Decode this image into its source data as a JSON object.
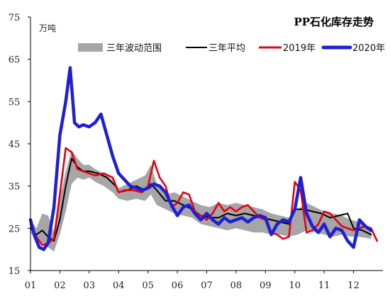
{
  "chart_data": {
    "type": "line",
    "title": "PP石化库存走势",
    "unit": "万吨",
    "xlabel": "",
    "ylabel": "",
    "ylim": [
      15,
      75
    ],
    "yticks": [
      15,
      25,
      35,
      45,
      55,
      65,
      75
    ],
    "xlim": [
      1,
      13
    ],
    "month_labels": [
      "01",
      "02",
      "03",
      "04",
      "05",
      "06",
      "07",
      "08",
      "09",
      "10",
      "11",
      "12"
    ],
    "grid": false,
    "legend_position": "top",
    "colors": {
      "band": "#a6a6a6",
      "avg": "#000000",
      "y2019": "#e60012",
      "y2020": "#1f1fd6"
    },
    "legend": {
      "band": "三年波动范围",
      "avg": "三年平均",
      "y2019": "2019年",
      "y2020": "2020年"
    },
    "band": {
      "name": "三年波动范围",
      "x": [
        1.0,
        1.2,
        1.4,
        1.6,
        1.8,
        2.0,
        2.2,
        2.4,
        2.6,
        2.8,
        3.0,
        3.2,
        3.5,
        3.8,
        4.0,
        4.3,
        4.6,
        4.9,
        5.1,
        5.3,
        5.6,
        5.9,
        6.2,
        6.5,
        6.8,
        7.1,
        7.4,
        7.7,
        8.0,
        8.3,
        8.6,
        8.9,
        9.2,
        9.5,
        9.8,
        10.1,
        10.4,
        10.7,
        11.0,
        11.3,
        11.6,
        11.9,
        12.2,
        12.6
      ],
      "high": [
        27.0,
        25.0,
        28.5,
        28.0,
        24.0,
        32.0,
        38.5,
        43.5,
        41.5,
        40.0,
        40.0,
        39.0,
        38.0,
        36.5,
        34.5,
        35.5,
        36.5,
        37.5,
        40.0,
        35.5,
        33.0,
        33.5,
        32.5,
        31.5,
        30.5,
        30.0,
        31.0,
        30.5,
        31.0,
        30.5,
        30.0,
        29.5,
        28.5,
        28.0,
        27.5,
        29.5,
        31.0,
        30.0,
        29.0,
        28.5,
        28.0,
        27.0,
        26.5,
        25.0
      ],
      "low": [
        24.0,
        22.0,
        21.5,
        20.5,
        19.5,
        23.5,
        29.0,
        35.5,
        37.0,
        36.5,
        37.0,
        36.0,
        35.0,
        33.5,
        32.0,
        31.5,
        32.0,
        31.5,
        33.0,
        30.5,
        29.5,
        28.5,
        28.0,
        27.5,
        26.0,
        25.5,
        25.0,
        24.5,
        25.0,
        24.5,
        24.0,
        24.0,
        23.5,
        23.5,
        23.0,
        23.5,
        24.5,
        24.0,
        23.5,
        23.0,
        23.5,
        23.0,
        23.0,
        22.5
      ]
    },
    "series": [
      {
        "name": "三年平均",
        "key": "avg",
        "x": [
          1.0,
          1.2,
          1.4,
          1.6,
          1.8,
          2.0,
          2.2,
          2.4,
          2.6,
          2.8,
          3.0,
          3.3,
          3.6,
          3.9,
          4.0,
          4.3,
          4.6,
          4.9,
          5.1,
          5.3,
          5.6,
          5.9,
          6.2,
          6.5,
          6.8,
          7.1,
          7.4,
          7.7,
          8.0,
          8.3,
          8.6,
          8.9,
          9.2,
          9.5,
          9.8,
          10.0,
          10.3,
          10.6,
          10.9,
          11.2,
          11.5,
          11.8,
          12.0,
          12.3,
          12.6
        ],
        "values": [
          25.0,
          23.5,
          24.5,
          23.0,
          22.0,
          27.0,
          35.0,
          41.5,
          39.5,
          38.5,
          38.5,
          38.0,
          37.0,
          35.0,
          33.5,
          34.0,
          35.0,
          34.0,
          35.5,
          34.0,
          31.5,
          31.5,
          30.5,
          29.5,
          28.0,
          27.5,
          27.5,
          28.5,
          28.0,
          28.5,
          28.0,
          27.5,
          27.0,
          26.5,
          26.0,
          29.5,
          29.5,
          29.0,
          28.5,
          27.5,
          28.0,
          28.5,
          25.0,
          24.5,
          23.5
        ]
      },
      {
        "name": "2019年",
        "key": "y2019",
        "x": [
          1.0,
          1.2,
          1.4,
          1.6,
          1.8,
          2.0,
          2.2,
          2.4,
          2.6,
          2.8,
          3.0,
          3.2,
          3.5,
          3.8,
          4.0,
          4.2,
          4.5,
          4.8,
          5.0,
          5.2,
          5.4,
          5.6,
          5.8,
          6.0,
          6.2,
          6.4,
          6.6,
          6.8,
          7.0,
          7.2,
          7.4,
          7.6,
          7.8,
          8.0,
          8.2,
          8.4,
          8.6,
          8.8,
          9.0,
          9.2,
          9.4,
          9.6,
          9.8,
          10.0,
          10.2,
          10.4,
          10.6,
          10.8,
          11.0,
          11.2,
          11.4,
          11.6,
          11.8,
          12.0,
          12.2,
          12.4,
          12.6,
          12.8
        ],
        "values": [
          26.0,
          23.0,
          21.0,
          21.5,
          22.5,
          33.0,
          44.0,
          43.0,
          39.0,
          38.5,
          38.0,
          37.5,
          38.0,
          37.0,
          33.5,
          34.0,
          34.0,
          33.5,
          35.0,
          41.0,
          37.0,
          35.0,
          30.0,
          31.0,
          33.5,
          33.0,
          29.0,
          28.0,
          27.0,
          28.5,
          31.0,
          29.0,
          30.0,
          29.0,
          30.0,
          30.5,
          29.0,
          27.5,
          27.0,
          24.0,
          23.5,
          22.5,
          23.0,
          36.0,
          34.0,
          24.0,
          24.5,
          26.0,
          29.0,
          28.5,
          27.0,
          25.5,
          25.0,
          24.5,
          25.0,
          25.5,
          25.0,
          22.0
        ]
      },
      {
        "name": "2020年",
        "key": "y2020",
        "x": [
          1.0,
          1.15,
          1.3,
          1.45,
          1.6,
          1.8,
          2.0,
          2.2,
          2.35,
          2.5,
          2.65,
          2.8,
          3.0,
          3.2,
          3.4,
          3.6,
          3.8,
          4.0,
          4.2,
          4.4,
          4.6,
          4.8,
          5.0,
          5.2,
          5.4,
          5.6,
          5.8,
          6.0,
          6.2,
          6.4,
          6.6,
          6.8,
          7.0,
          7.2,
          7.4,
          7.6,
          7.8,
          8.0,
          8.2,
          8.4,
          8.6,
          8.8,
          9.0,
          9.2,
          9.4,
          9.6,
          9.8,
          10.0,
          10.2,
          10.4,
          10.6,
          10.8,
          11.0,
          11.2,
          11.4,
          11.6,
          11.8,
          12.0,
          12.2,
          12.4,
          12.6
        ],
        "values": [
          27.0,
          23.0,
          20.5,
          20.0,
          21.5,
          30.0,
          47.0,
          55.0,
          63.0,
          50.0,
          49.0,
          49.5,
          49.0,
          50.0,
          52.0,
          47.0,
          42.0,
          38.0,
          36.5,
          35.0,
          34.5,
          34.0,
          34.5,
          35.5,
          35.0,
          33.5,
          30.5,
          28.0,
          30.0,
          30.5,
          28.5,
          27.0,
          28.5,
          27.0,
          26.0,
          27.5,
          26.5,
          27.0,
          27.5,
          26.5,
          27.5,
          28.0,
          27.5,
          23.5,
          26.0,
          27.0,
          26.5,
          29.5,
          37.0,
          28.5,
          25.5,
          24.0,
          26.0,
          23.0,
          25.0,
          24.5,
          22.0,
          20.5,
          27.0,
          25.5,
          24.5
        ]
      }
    ]
  }
}
